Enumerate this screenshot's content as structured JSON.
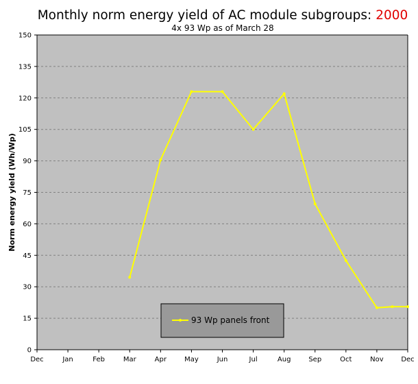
{
  "chart_data": {
    "type": "line",
    "title": "Monthly norm energy yield of AC module subgroups:",
    "title_year": "2000",
    "subtitle": "4x 93 Wp as of March 28",
    "xlabel": "",
    "ylabel": "Norm energy yield (Wh/Wp)",
    "categories": [
      "Dec",
      "Jan",
      "Feb",
      "Mar",
      "Apr",
      "May",
      "Jun",
      "Jul",
      "Aug",
      "Sep",
      "Oct",
      "Nov",
      "Dec"
    ],
    "ylim": [
      0,
      150
    ],
    "yticks": [
      0,
      15,
      30,
      45,
      60,
      75,
      90,
      105,
      120,
      135,
      150
    ],
    "grid": true,
    "legend_position": "bottom-center",
    "series": [
      {
        "name": "93 Wp panels front",
        "color": "#ffff00",
        "x": [
          3,
          4,
          5,
          6,
          7,
          8,
          9,
          10,
          11,
          11.5,
          12
        ],
        "values": [
          34.5,
          90.5,
          123,
          123,
          105,
          122,
          69.5,
          42.5,
          20,
          20.5,
          20.5
        ]
      }
    ],
    "colors": {
      "plot_background": "#c0c0c0",
      "gridline": "#808080",
      "legend_background": "#999999",
      "title_year": "#e00000"
    }
  }
}
